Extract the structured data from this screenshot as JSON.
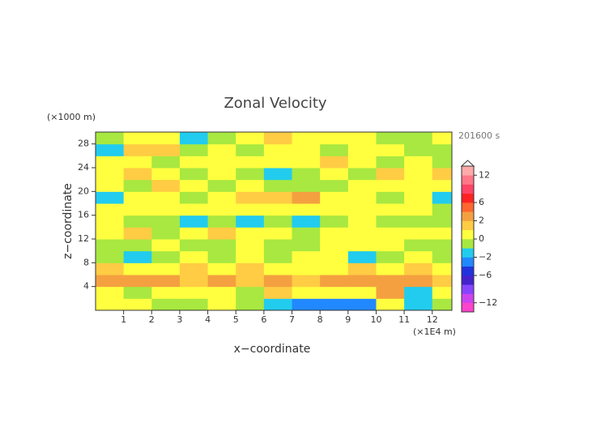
{
  "chart_data": {
    "type": "contour",
    "title": "Zonal Velocity",
    "y_unit": "(×1000 m)",
    "x_unit": "(×1E4 m)",
    "time_label": "201600 s",
    "x_label": "x−coordinate",
    "y_label": "z−coordinate",
    "xlim": [
      0,
      12.7
    ],
    "ylim": [
      0,
      30
    ],
    "xticks": [
      1,
      2,
      3,
      4,
      5,
      6,
      7,
      8,
      9,
      10,
      11,
      12
    ],
    "yticks": [
      4,
      8,
      12,
      16,
      20,
      24,
      28
    ],
    "field": {
      "x": [
        0.5,
        1.5,
        2.5,
        3.5,
        4.5,
        5.5,
        6.5,
        7.5,
        8.5,
        9.5,
        10.5,
        11.5,
        12.5
      ],
      "z": [
        1,
        3,
        5,
        7,
        9,
        11,
        13,
        15,
        17,
        19,
        21,
        23,
        25,
        27,
        29
      ],
      "values": [
        [
          0.5,
          0.5,
          -0.5,
          -0.5,
          0.5,
          -0.5,
          -1.5,
          -3,
          -3,
          -3,
          0.5,
          -1.5,
          -0.5
        ],
        [
          0.5,
          -0.5,
          0.5,
          0.5,
          0.5,
          -0.5,
          1.5,
          0.5,
          0.5,
          0.5,
          3,
          -1.5,
          0.5
        ],
        [
          3,
          3,
          3,
          1.5,
          3,
          1.5,
          3,
          1.5,
          3,
          3,
          3,
          3,
          1.5
        ],
        [
          1.5,
          0.5,
          0.5,
          1.5,
          0.5,
          1.5,
          0.5,
          0.5,
          0.5,
          1.5,
          0.5,
          1.5,
          0.5
        ],
        [
          -0.5,
          -1.5,
          -0.5,
          0.5,
          -0.5,
          0.5,
          -0.5,
          0.5,
          0.5,
          -1.5,
          -0.5,
          0.5,
          -0.5
        ],
        [
          -0.5,
          -0.5,
          0.5,
          -0.5,
          -0.5,
          0.5,
          -0.5,
          -0.5,
          0.5,
          0.5,
          0.5,
          -0.5,
          -0.5
        ],
        [
          0.5,
          1.5,
          -0.5,
          0.5,
          1.5,
          0.5,
          0.5,
          -0.5,
          0.5,
          0.5,
          0.5,
          0.5,
          0.5
        ],
        [
          0.5,
          -0.5,
          -0.5,
          -1.5,
          -0.5,
          -1.5,
          -0.5,
          -1.5,
          -0.5,
          0.5,
          -0.5,
          -0.5,
          -0.5
        ],
        [
          0.5,
          0.5,
          0.5,
          0.5,
          0.5,
          0.5,
          0.5,
          0.5,
          0.5,
          0.5,
          0.5,
          0.5,
          -0.5
        ],
        [
          -1.5,
          0.5,
          0.5,
          -0.5,
          0.5,
          1.5,
          1.5,
          3,
          0.5,
          0.5,
          -0.5,
          0.5,
          -1.5
        ],
        [
          0.5,
          -0.5,
          1.5,
          0.5,
          -0.5,
          0.5,
          -0.5,
          -0.5,
          -0.5,
          0.5,
          0.5,
          0.5,
          0.5
        ],
        [
          0.5,
          1.5,
          0.5,
          -0.5,
          0.5,
          -0.5,
          -1.5,
          -0.5,
          0.5,
          -0.5,
          1.5,
          0.5,
          1.5
        ],
        [
          0.5,
          0.5,
          -0.5,
          0.5,
          0.5,
          0.5,
          0.5,
          0.5,
          1.5,
          0.5,
          -0.5,
          0.5,
          -0.5
        ],
        [
          -1.5,
          1.5,
          1.5,
          -0.5,
          0.5,
          -0.5,
          0.5,
          0.5,
          -0.5,
          0.5,
          0.5,
          -0.5,
          -0.5
        ],
        [
          -0.5,
          0.5,
          0.5,
          -1.5,
          -0.5,
          0.5,
          1.5,
          0.5,
          0.5,
          0.5,
          -0.5,
          -0.5,
          0.5
        ]
      ]
    },
    "colorbar": {
      "levels": [
        -14,
        -12,
        -10,
        -8,
        -6,
        -4,
        -2,
        -1,
        0,
        1,
        2,
        4,
        6,
        8,
        10,
        12,
        14
      ],
      "colors": [
        "#ff44cc",
        "#cc44ee",
        "#8844ff",
        "#4422cc",
        "#2233dd",
        "#2288ff",
        "#22ccee",
        "#a8e840",
        "#ffff40",
        "#ffcc44",
        "#f4a040",
        "#ff6630",
        "#ff2222",
        "#ff4466",
        "#ff7788",
        "#ffaaaa"
      ],
      "ticks": [
        12,
        6,
        2,
        0,
        {
          "value": -2,
          "label": "−2"
        },
        {
          "value": -6,
          "label": "−6"
        },
        {
          "value": -12,
          "label": "−12"
        }
      ]
    }
  }
}
